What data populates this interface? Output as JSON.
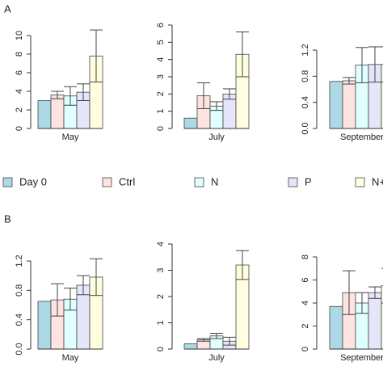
{
  "panel_labels": [
    "A",
    "B"
  ],
  "chart_data": [
    {
      "type": "bar",
      "categories": [
        "May"
      ],
      "ylim": [
        0,
        10
      ],
      "yticks": [
        0,
        2,
        4,
        6,
        8,
        10
      ],
      "series": [
        {
          "name": "Day 0",
          "color": "#add8e6",
          "values": [
            3.0
          ],
          "errors": [
            0
          ]
        },
        {
          "name": "Ctrl",
          "color": "#fde4e1",
          "values": [
            3.6
          ],
          "errors": [
            0.4
          ]
        },
        {
          "name": "N",
          "color": "#e0ffff",
          "values": [
            3.5
          ],
          "errors": [
            1.0
          ]
        },
        {
          "name": "P",
          "color": "#e6e6fa",
          "values": [
            3.9
          ],
          "errors": [
            0.9
          ]
        },
        {
          "name": "N+",
          "color": "#ffffe0",
          "values": [
            7.8
          ],
          "errors": [
            2.8
          ]
        }
      ]
    },
    {
      "type": "bar",
      "categories": [
        "July"
      ],
      "ylim": [
        0,
        6
      ],
      "yticks": [
        0,
        1,
        2,
        3,
        4,
        5,
        6
      ],
      "series": [
        {
          "name": "Day 0",
          "color": "#add8e6",
          "values": [
            0.6
          ],
          "errors": [
            0
          ]
        },
        {
          "name": "Ctrl",
          "color": "#fde4e1",
          "values": [
            1.9
          ],
          "errors": [
            0.75
          ]
        },
        {
          "name": "N",
          "color": "#e0ffff",
          "values": [
            1.3
          ],
          "errors": [
            0.25
          ]
        },
        {
          "name": "P",
          "color": "#e6e6fa",
          "values": [
            2.0
          ],
          "errors": [
            0.3
          ]
        },
        {
          "name": "N+",
          "color": "#ffffe0",
          "values": [
            4.3
          ],
          "errors": [
            1.3
          ]
        }
      ]
    },
    {
      "type": "bar",
      "categories": [
        "September"
      ],
      "ylim": [
        0,
        1.2
      ],
      "yticks": [
        {
          "value": 0,
          "label": "0.0"
        },
        0.4,
        0.8,
        1.2
      ],
      "series": [
        {
          "name": "Day 0",
          "color": "#add8e6",
          "values": [
            0.72
          ],
          "errors": [
            0
          ]
        },
        {
          "name": "Ctrl",
          "color": "#fde4e1",
          "values": [
            0.73
          ],
          "errors": [
            0.05
          ]
        },
        {
          "name": "N",
          "color": "#e0ffff",
          "values": [
            0.97
          ],
          "errors": [
            0.27
          ]
        },
        {
          "name": "P",
          "color": "#e6e6fa",
          "values": [
            0.98
          ],
          "errors": [
            0.27
          ]
        },
        {
          "name": "N+",
          "color": "#ffffe0",
          "values": [
            0.98
          ],
          "errors": [
            0.27
          ]
        }
      ]
    },
    {
      "type": "bar",
      "categories": [
        "May"
      ],
      "ylim": [
        0,
        1.2
      ],
      "yticks": [
        {
          "value": 0,
          "label": "0.0"
        },
        0.4,
        0.8,
        1.2
      ],
      "series": [
        {
          "name": "Day 0",
          "color": "#add8e6",
          "values": [
            0.65
          ],
          "errors": [
            0
          ]
        },
        {
          "name": "Ctrl",
          "color": "#fde4e1",
          "values": [
            0.67
          ],
          "errors": [
            0.22
          ]
        },
        {
          "name": "N",
          "color": "#e0ffff",
          "values": [
            0.68
          ],
          "errors": [
            0.15
          ]
        },
        {
          "name": "P",
          "color": "#e6e6fa",
          "values": [
            0.87
          ],
          "errors": [
            0.13
          ]
        },
        {
          "name": "N+",
          "color": "#ffffe0",
          "values": [
            0.98
          ],
          "errors": [
            0.25
          ]
        }
      ]
    },
    {
      "type": "bar",
      "categories": [
        "July"
      ],
      "ylim": [
        0,
        4
      ],
      "yticks": [
        0,
        1,
        2,
        3,
        4
      ],
      "series": [
        {
          "name": "Day 0",
          "color": "#add8e6",
          "values": [
            0.2
          ],
          "errors": [
            0
          ]
        },
        {
          "name": "Ctrl",
          "color": "#fde4e1",
          "values": [
            0.35
          ],
          "errors": [
            0.05
          ]
        },
        {
          "name": "N",
          "color": "#e0ffff",
          "values": [
            0.5
          ],
          "errors": [
            0.1
          ]
        },
        {
          "name": "P",
          "color": "#e6e6fa",
          "values": [
            0.3
          ],
          "errors": [
            0.15
          ]
        },
        {
          "name": "N+",
          "color": "#ffffe0",
          "values": [
            3.2
          ],
          "errors": [
            0.55
          ]
        }
      ]
    },
    {
      "type": "bar",
      "categories": [
        "September"
      ],
      "ylim": [
        0,
        8
      ],
      "yticks": [
        0,
        2,
        4,
        6,
        8
      ],
      "series": [
        {
          "name": "Day 0",
          "color": "#add8e6",
          "values": [
            3.7
          ],
          "errors": [
            0
          ]
        },
        {
          "name": "Ctrl",
          "color": "#fde4e1",
          "values": [
            4.9
          ],
          "errors": [
            1.9
          ]
        },
        {
          "name": "N",
          "color": "#e0ffff",
          "values": [
            4.0
          ],
          "errors": [
            0.9
          ]
        },
        {
          "name": "P",
          "color": "#e6e6fa",
          "values": [
            4.9
          ],
          "errors": [
            0.5
          ]
        },
        {
          "name": "N+",
          "color": "#ffffe0",
          "values": [
            5.5
          ],
          "errors": [
            1.5
          ]
        }
      ]
    }
  ]
}
